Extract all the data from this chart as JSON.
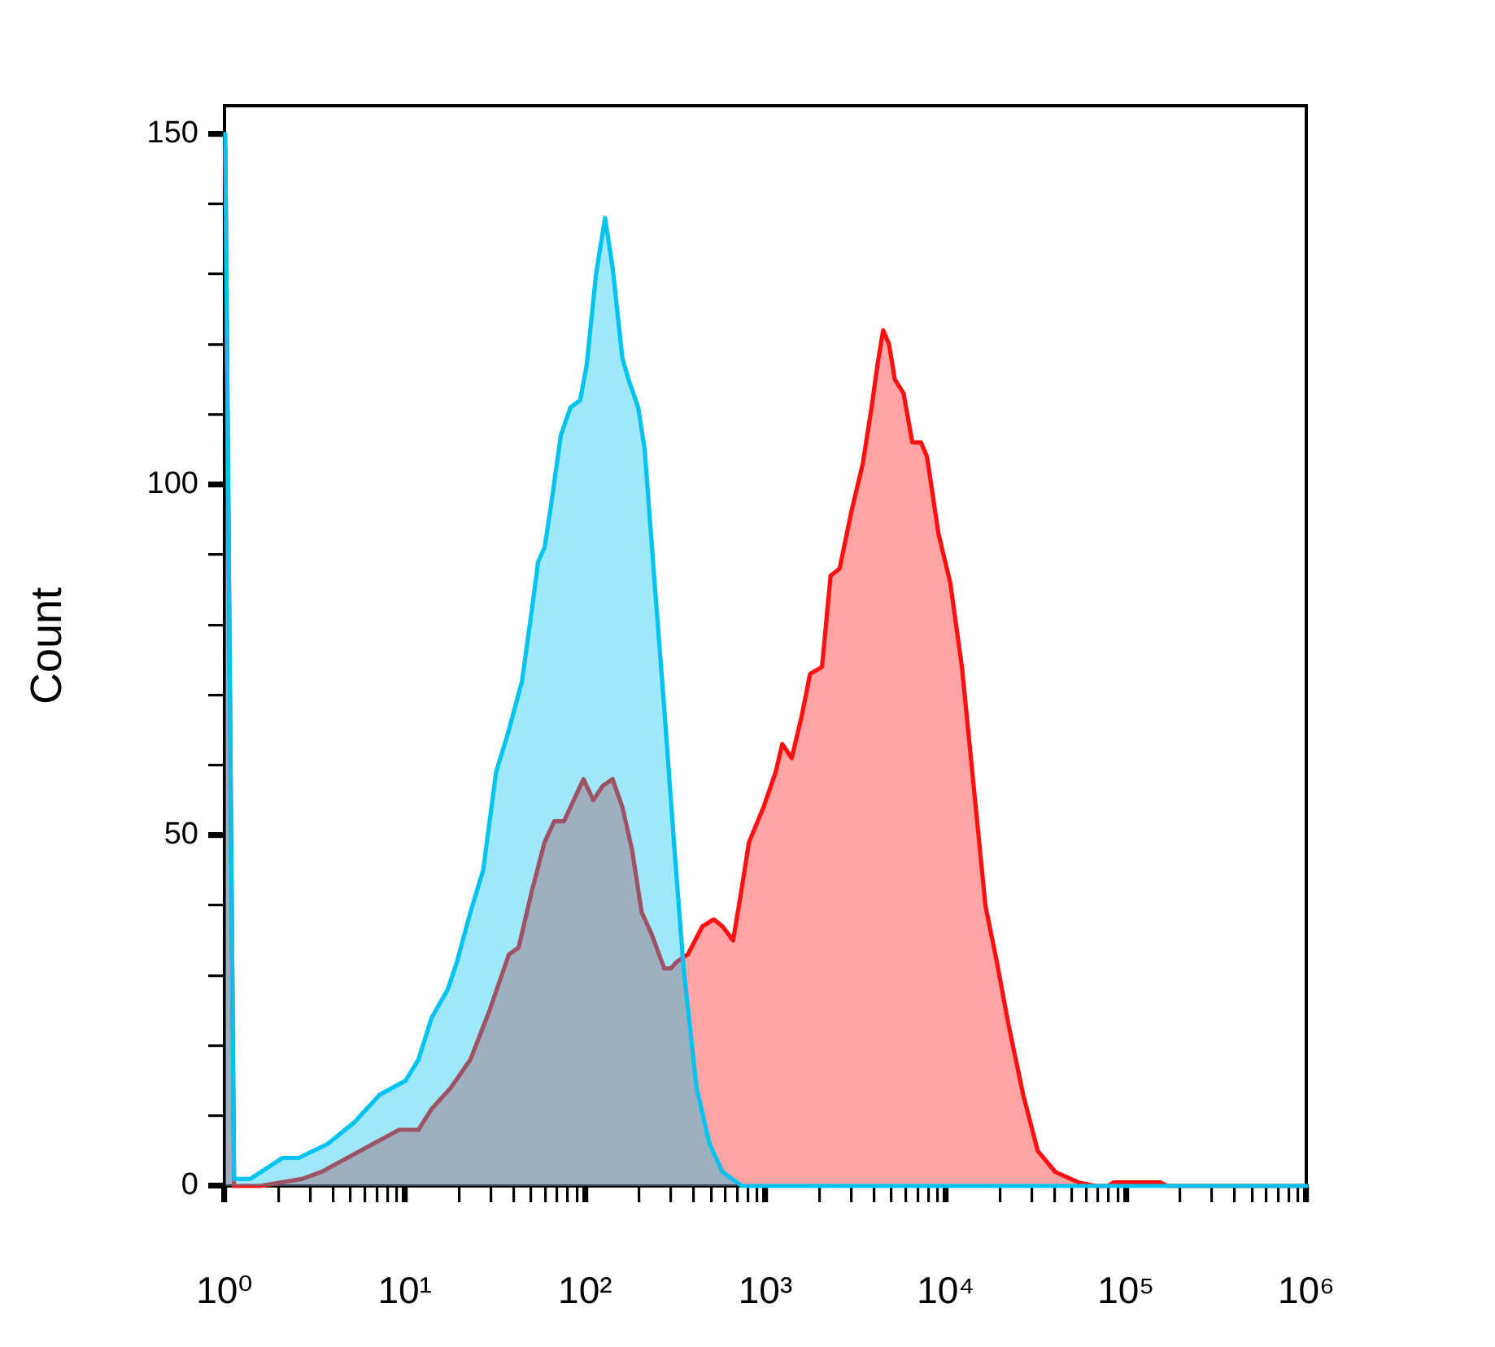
{
  "chart_data": {
    "type": "area",
    "ylabel": "Count",
    "log": "x",
    "xlim": [
      1,
      1000000
    ],
    "ylim": [
      0,
      154
    ],
    "xticks": [
      {
        "value": 1,
        "label": "10⁰"
      },
      {
        "value": 2,
        "label": null
      },
      {
        "value": 3,
        "label": null
      },
      {
        "value": 4,
        "label": null
      },
      {
        "value": 5,
        "label": null
      },
      {
        "value": 6,
        "label": null
      },
      {
        "value": 7,
        "label": null
      },
      {
        "value": 8,
        "label": null
      },
      {
        "value": 9,
        "label": null
      },
      {
        "value": 10,
        "label": "10¹"
      },
      {
        "value": 20,
        "label": null
      },
      {
        "value": 30,
        "label": null
      },
      {
        "value": 40,
        "label": null
      },
      {
        "value": 50,
        "label": null
      },
      {
        "value": 60,
        "label": null
      },
      {
        "value": 70,
        "label": null
      },
      {
        "value": 80,
        "label": null
      },
      {
        "value": 90,
        "label": null
      },
      {
        "value": 100,
        "label": "10²"
      },
      {
        "value": 200,
        "label": null
      },
      {
        "value": 300,
        "label": null
      },
      {
        "value": 400,
        "label": null
      },
      {
        "value": 500,
        "label": null
      },
      {
        "value": 600,
        "label": null
      },
      {
        "value": 700,
        "label": null
      },
      {
        "value": 800,
        "label": null
      },
      {
        "value": 900,
        "label": null
      },
      {
        "value": 1000,
        "label": "10³"
      },
      {
        "value": 2000,
        "label": null
      },
      {
        "value": 3000,
        "label": null
      },
      {
        "value": 4000,
        "label": null
      },
      {
        "value": 5000,
        "label": null
      },
      {
        "value": 6000,
        "label": null
      },
      {
        "value": 7000,
        "label": null
      },
      {
        "value": 8000,
        "label": null
      },
      {
        "value": 9000,
        "label": null
      },
      {
        "value": 10000,
        "label": "10⁴"
      },
      {
        "value": 20000,
        "label": null
      },
      {
        "value": 30000,
        "label": null
      },
      {
        "value": 40000,
        "label": null
      },
      {
        "value": 50000,
        "label": null
      },
      {
        "value": 60000,
        "label": null
      },
      {
        "value": 70000,
        "label": null
      },
      {
        "value": 80000,
        "label": null
      },
      {
        "value": 90000,
        "label": null
      },
      {
        "value": 100000,
        "label": "10⁵"
      },
      {
        "value": 200000,
        "label": null
      },
      {
        "value": 300000,
        "label": null
      },
      {
        "value": 400000,
        "label": null
      },
      {
        "value": 500000,
        "label": null
      },
      {
        "value": 600000,
        "label": null
      },
      {
        "value": 700000,
        "label": null
      },
      {
        "value": 800000,
        "label": null
      },
      {
        "value": 900000,
        "label": null
      },
      {
        "value": 1000000,
        "label": "10⁶"
      }
    ],
    "yticks": [
      0,
      {
        "value": 10,
        "label": null
      },
      {
        "value": 20,
        "label": null
      },
      {
        "value": 30,
        "label": null
      },
      {
        "value": 40,
        "label": null
      },
      50,
      {
        "value": 60,
        "label": null
      },
      {
        "value": 70,
        "label": null
      },
      {
        "value": 80,
        "label": null
      },
      {
        "value": 90,
        "label": null
      },
      100,
      {
        "value": 110,
        "label": null
      },
      {
        "value": 120,
        "label": null
      },
      {
        "value": 130,
        "label": null
      },
      {
        "value": 140,
        "label": null
      },
      150
    ],
    "series": [
      {
        "color": "#00c3f0",
        "x": [
          1.01,
          1.13,
          1.39,
          2.1,
          2.58,
          3.74,
          5.21,
          7.25,
          10.1,
          11.9,
          14.1,
          17.3,
          19.5,
          23.1,
          27.2,
          32.1,
          37.8,
          44.7,
          50.6,
          54.9,
          59.6,
          64.7,
          73.3,
          83,
          93.9,
          102,
          115,
          129,
          142,
          161,
          174,
          197,
          214,
          243,
          275,
          311,
          352,
          415,
          490,
          578,
          741,
          1000000
        ],
        "values": [
          150,
          1,
          1,
          4,
          4,
          6,
          9,
          13,
          15,
          18,
          24,
          28,
          32,
          39,
          45,
          59,
          65,
          72,
          82,
          89,
          91,
          97,
          107,
          111,
          112,
          117,
          130,
          138,
          131,
          118,
          115,
          111,
          105,
          86,
          68,
          49,
          31,
          14,
          6,
          2,
          0,
          0
        ]
      },
      {
        "color": "#ff1010",
        "x": [
          1.01,
          1.13,
          1.57,
          2.69,
          3.45,
          4.8,
          6.67,
          9.29,
          11.9,
          14.1,
          18,
          23.1,
          29.5,
          37.8,
          42.8,
          50.6,
          59.6,
          67.5,
          76.4,
          86.5,
          98,
          111,
          125,
          142,
          161,
          182,
          206,
          233,
          275,
          298,
          324,
          371,
          447,
          517,
          578,
          662,
          724,
          811,
          977,
          1140,
          1240,
          1400,
          1590,
          1770,
          2060,
          2300,
          2580,
          2990,
          3470,
          3880,
          4180,
          4500,
          4850,
          5220,
          5840,
          6530,
          7300,
          7870,
          9120,
          10600,
          12300,
          14300,
          16600,
          19200,
          22300,
          26900,
          32400,
          40500,
          54600,
          68300,
          80000,
          85400,
          155000,
          170000,
          1000000
        ],
        "values": [
          148,
          0,
          0,
          1,
          2,
          4,
          6,
          8,
          8,
          11,
          14,
          18,
          25,
          33,
          34,
          42,
          49,
          52,
          52,
          55,
          58,
          55,
          57,
          58,
          54,
          48,
          39,
          36,
          31,
          31,
          32,
          33,
          37,
          38,
          37,
          35,
          41,
          49,
          54,
          59,
          63,
          61,
          67,
          73,
          74,
          87,
          88,
          96,
          103,
          111,
          117,
          122,
          120,
          115,
          113,
          106,
          106,
          104,
          93,
          86,
          74,
          57,
          40,
          32,
          23,
          13,
          5,
          2,
          0.5,
          0,
          0,
          0.5,
          0.5,
          0,
          0
        ]
      }
    ]
  }
}
